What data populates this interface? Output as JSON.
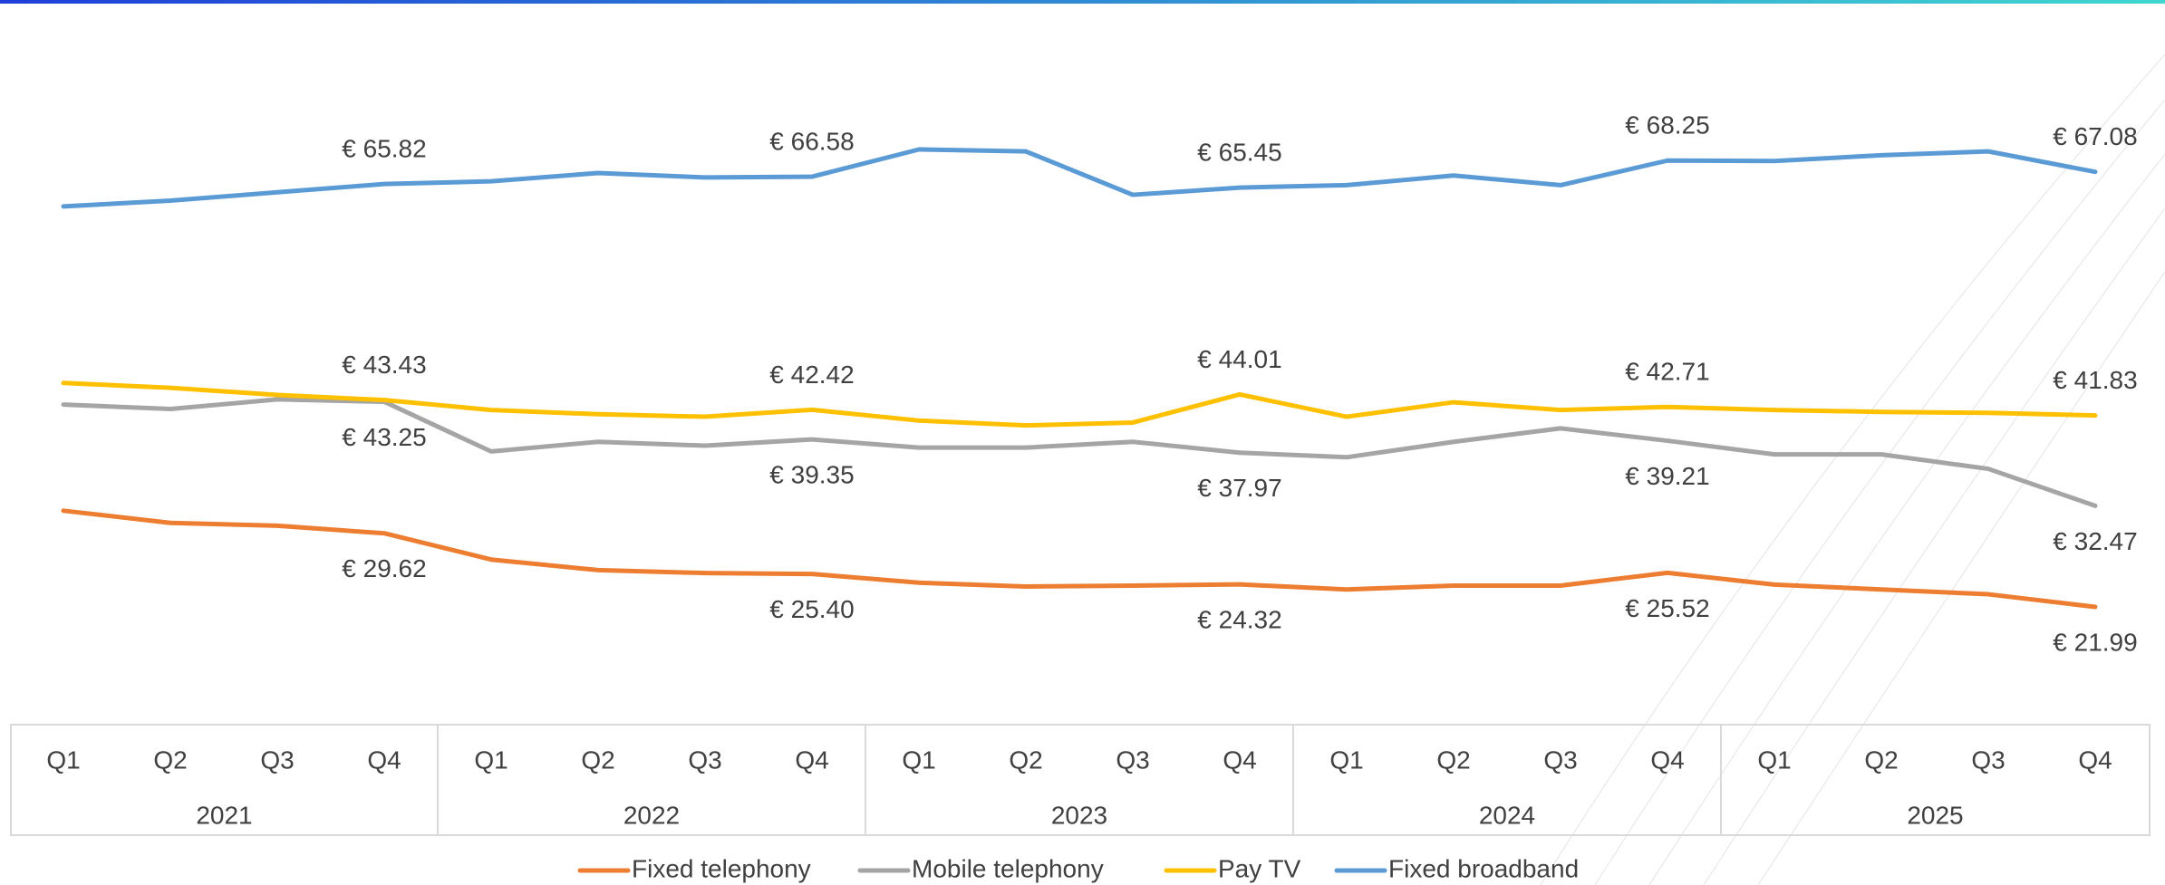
{
  "chart_data": {
    "type": "line",
    "categories": [
      "Q1",
      "Q2",
      "Q3",
      "Q4",
      "Q1",
      "Q2",
      "Q3",
      "Q4",
      "Q1",
      "Q2",
      "Q3",
      "Q4",
      "Q1",
      "Q2",
      "Q3",
      "Q4",
      "Q1",
      "Q2",
      "Q3",
      "Q4"
    ],
    "groups": [
      "2021",
      "2022",
      "2023",
      "2024",
      "2025"
    ],
    "series": [
      {
        "name": "Fixed telephony",
        "color": "#ed7d31",
        "values": [
          31.96,
          30.7,
          30.4,
          29.62,
          26.9,
          25.8,
          25.5,
          25.4,
          24.5,
          24.1,
          24.2,
          24.32,
          23.8,
          24.2,
          24.2,
          25.52,
          24.3,
          23.8,
          23.3,
          21.99
        ],
        "value_labels": [
          null,
          null,
          null,
          "€ 29.62",
          null,
          null,
          null,
          "€ 25.40",
          null,
          null,
          null,
          "€ 24.32",
          null,
          null,
          null,
          "€ 25.52",
          null,
          null,
          null,
          "€ 21.99"
        ]
      },
      {
        "name": "Mobile telephony",
        "color": "#a5a5a5",
        "values": [
          42.96,
          42.5,
          43.5,
          43.25,
          38.1,
          39.1,
          38.7,
          39.35,
          38.5,
          38.5,
          39.1,
          37.97,
          37.5,
          39.1,
          40.5,
          39.21,
          37.8,
          37.8,
          36.3,
          32.47
        ],
        "value_labels": [
          null,
          null,
          null,
          "€ 43.25",
          null,
          null,
          null,
          "€ 39.35",
          null,
          null,
          null,
          "€ 37.97",
          null,
          null,
          null,
          "€ 39.21",
          null,
          null,
          null,
          "€ 32.47"
        ]
      },
      {
        "name": "Pay TV",
        "color": "#ffc000",
        "values": [
          45.2,
          44.7,
          43.96,
          43.43,
          42.4,
          41.96,
          41.7,
          42.42,
          41.3,
          40.8,
          41.1,
          44.01,
          41.7,
          43.2,
          42.4,
          42.71,
          42.4,
          42.2,
          42.1,
          41.83
        ],
        "value_labels": [
          null,
          null,
          null,
          "€ 43.43",
          null,
          null,
          null,
          "€ 42.42",
          null,
          null,
          null,
          "€ 44.01",
          null,
          null,
          null,
          "€ 42.71",
          null,
          null,
          null,
          "€ 41.83"
        ]
      },
      {
        "name": "Fixed broadband",
        "color": "#5b9bd5",
        "values": [
          63.5,
          64.1,
          64.96,
          65.82,
          66.1,
          66.96,
          66.5,
          66.58,
          69.4,
          69.2,
          64.7,
          65.45,
          65.7,
          66.7,
          65.7,
          68.25,
          68.2,
          68.8,
          69.2,
          67.08
        ],
        "value_labels": [
          null,
          null,
          null,
          "€ 65.82",
          null,
          null,
          null,
          "€ 66.58",
          null,
          null,
          null,
          "€ 65.45",
          null,
          null,
          null,
          "€ 68.25",
          null,
          null,
          null,
          "€ 67.08"
        ]
      }
    ],
    "legend": "bottom"
  }
}
